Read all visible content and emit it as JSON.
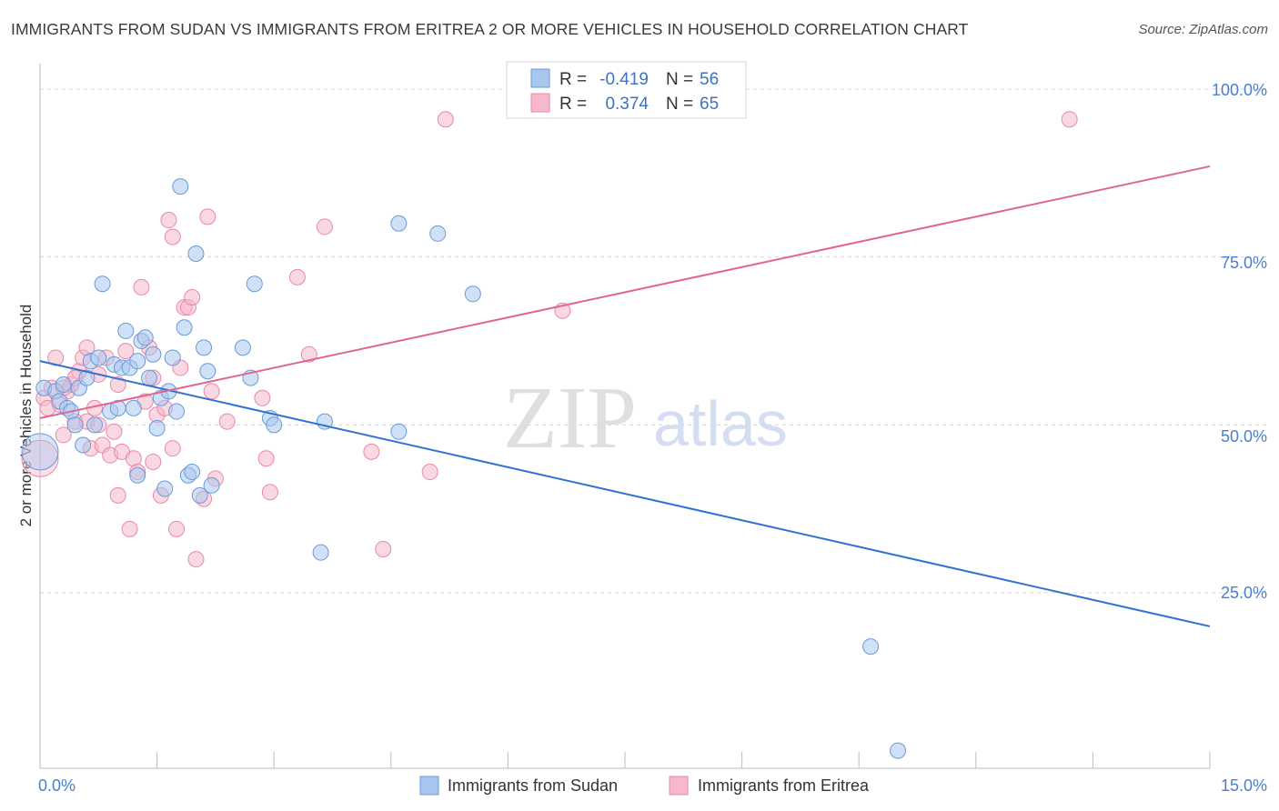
{
  "title": "IMMIGRANTS FROM SUDAN VS IMMIGRANTS FROM ERITREA 2 OR MORE VEHICLES IN HOUSEHOLD CORRELATION CHART",
  "source": "Source: ZipAtlas.com",
  "watermark": {
    "zip": "ZIP",
    "atlas": "atlas"
  },
  "colors": {
    "sudan_fill": "#a9c6ee",
    "sudan_stroke": "#6a9ad8",
    "sudan_line": "#2f72d0",
    "eritrea_fill": "#f6b8cb",
    "eritrea_stroke": "#e889a8",
    "eritrea_line": "#e06690",
    "grid": "#d8d8d8",
    "axis_label": "#4a7fd0"
  },
  "legend": {
    "r_label": "R =",
    "n_label": "N =",
    "sudan": {
      "r": "-0.419",
      "n": "56"
    },
    "eritrea": {
      "r": "0.374",
      "n": "65"
    }
  },
  "chart_data": {
    "type": "scatter",
    "title": "IMMIGRANTS FROM SUDAN VS IMMIGRANTS FROM ERITREA 2 OR MORE VEHICLES IN HOUSEHOLD CORRELATION CHART",
    "xlabel": "",
    "ylabel": "2 or more Vehicles in Household",
    "xlim": [
      0,
      15
    ],
    "ylim": [
      0,
      105
    ],
    "x_tick_labels": [
      "0.0%",
      "15.0%"
    ],
    "y_ticks": [
      25,
      50,
      75,
      100
    ],
    "y_tick_labels": [
      "25.0%",
      "50.0%",
      "75.0%",
      "100.0%"
    ],
    "grid": true,
    "series": [
      {
        "name": "Immigrants from Sudan",
        "r": -0.419,
        "n": 56,
        "trend": {
          "x": [
            0,
            15
          ],
          "y": [
            59.5,
            20
          ]
        },
        "points": [
          {
            "x": 0.0,
            "y": 46,
            "big": true
          },
          {
            "x": 0.05,
            "y": 55.5
          },
          {
            "x": 0.2,
            "y": 55
          },
          {
            "x": 0.25,
            "y": 53.5
          },
          {
            "x": 0.3,
            "y": 56
          },
          {
            "x": 0.35,
            "y": 52.5
          },
          {
            "x": 0.4,
            "y": 52
          },
          {
            "x": 0.45,
            "y": 50
          },
          {
            "x": 0.5,
            "y": 55.5
          },
          {
            "x": 0.55,
            "y": 47
          },
          {
            "x": 0.6,
            "y": 57
          },
          {
            "x": 0.65,
            "y": 59.5
          },
          {
            "x": 0.7,
            "y": 50
          },
          {
            "x": 0.75,
            "y": 60
          },
          {
            "x": 0.8,
            "y": 71
          },
          {
            "x": 0.9,
            "y": 52
          },
          {
            "x": 0.95,
            "y": 59
          },
          {
            "x": 1.0,
            "y": 52.5
          },
          {
            "x": 1.05,
            "y": 58.5
          },
          {
            "x": 1.1,
            "y": 64
          },
          {
            "x": 1.15,
            "y": 58.5
          },
          {
            "x": 1.2,
            "y": 52.5
          },
          {
            "x": 1.25,
            "y": 42.5
          },
          {
            "x": 1.3,
            "y": 62.5
          },
          {
            "x": 1.35,
            "y": 63
          },
          {
            "x": 1.4,
            "y": 57
          },
          {
            "x": 1.45,
            "y": 60.5
          },
          {
            "x": 1.5,
            "y": 49.5
          },
          {
            "x": 1.55,
            "y": 54
          },
          {
            "x": 1.6,
            "y": 40.5
          },
          {
            "x": 1.65,
            "y": 55
          },
          {
            "x": 1.7,
            "y": 60
          },
          {
            "x": 1.75,
            "y": 52
          },
          {
            "x": 1.8,
            "y": 85.5
          },
          {
            "x": 1.85,
            "y": 64.5
          },
          {
            "x": 1.9,
            "y": 42.5
          },
          {
            "x": 1.95,
            "y": 43
          },
          {
            "x": 2.0,
            "y": 75.5
          },
          {
            "x": 2.05,
            "y": 39.5
          },
          {
            "x": 2.1,
            "y": 61.5
          },
          {
            "x": 2.15,
            "y": 58
          },
          {
            "x": 2.2,
            "y": 41
          },
          {
            "x": 2.6,
            "y": 61.5
          },
          {
            "x": 2.7,
            "y": 57
          },
          {
            "x": 2.75,
            "y": 71
          },
          {
            "x": 2.95,
            "y": 51
          },
          {
            "x": 3.0,
            "y": 50
          },
          {
            "x": 3.6,
            "y": 31
          },
          {
            "x": 3.65,
            "y": 50.5
          },
          {
            "x": 4.6,
            "y": 80
          },
          {
            "x": 4.6,
            "y": 49
          },
          {
            "x": 5.1,
            "y": 78.5
          },
          {
            "x": 5.55,
            "y": 69.5
          },
          {
            "x": 10.65,
            "y": 17
          },
          {
            "x": 11.0,
            "y": 1.5
          },
          {
            "x": 1.25,
            "y": 59.5
          }
        ]
      },
      {
        "name": "Immigrants from Eritrea",
        "r": 0.374,
        "n": 65,
        "trend": {
          "x": [
            0,
            15
          ],
          "y": [
            51,
            88.5
          ]
        },
        "points": [
          {
            "x": 0.0,
            "y": 45,
            "big": true
          },
          {
            "x": 0.05,
            "y": 54
          },
          {
            "x": 0.15,
            "y": 55.5
          },
          {
            "x": 0.2,
            "y": 60
          },
          {
            "x": 0.25,
            "y": 53
          },
          {
            "x": 0.3,
            "y": 48.5
          },
          {
            "x": 0.35,
            "y": 55
          },
          {
            "x": 0.4,
            "y": 56
          },
          {
            "x": 0.45,
            "y": 50.5
          },
          {
            "x": 0.5,
            "y": 58
          },
          {
            "x": 0.55,
            "y": 60
          },
          {
            "x": 0.6,
            "y": 61.5
          },
          {
            "x": 0.65,
            "y": 46.5
          },
          {
            "x": 0.7,
            "y": 52.5
          },
          {
            "x": 0.75,
            "y": 57.5
          },
          {
            "x": 0.8,
            "y": 47
          },
          {
            "x": 0.85,
            "y": 60
          },
          {
            "x": 0.9,
            "y": 45.5
          },
          {
            "x": 0.95,
            "y": 49
          },
          {
            "x": 1.0,
            "y": 39.5
          },
          {
            "x": 1.05,
            "y": 46
          },
          {
            "x": 1.1,
            "y": 61
          },
          {
            "x": 1.15,
            "y": 34.5
          },
          {
            "x": 1.2,
            "y": 45
          },
          {
            "x": 1.25,
            "y": 43
          },
          {
            "x": 1.3,
            "y": 70.5
          },
          {
            "x": 1.35,
            "y": 53.5
          },
          {
            "x": 1.4,
            "y": 61.5
          },
          {
            "x": 1.45,
            "y": 44.5
          },
          {
            "x": 1.5,
            "y": 51.5
          },
          {
            "x": 1.55,
            "y": 39.5
          },
          {
            "x": 1.6,
            "y": 52.5
          },
          {
            "x": 1.65,
            "y": 80.5
          },
          {
            "x": 1.7,
            "y": 78
          },
          {
            "x": 1.75,
            "y": 34.5
          },
          {
            "x": 1.8,
            "y": 58.5
          },
          {
            "x": 1.85,
            "y": 67.5
          },
          {
            "x": 1.9,
            "y": 67.5
          },
          {
            "x": 1.95,
            "y": 69
          },
          {
            "x": 2.0,
            "y": 30
          },
          {
            "x": 2.1,
            "y": 39
          },
          {
            "x": 2.15,
            "y": 81
          },
          {
            "x": 2.2,
            "y": 55
          },
          {
            "x": 2.25,
            "y": 42
          },
          {
            "x": 2.4,
            "y": 50.5
          },
          {
            "x": 2.85,
            "y": 54
          },
          {
            "x": 2.9,
            "y": 45
          },
          {
            "x": 2.95,
            "y": 40
          },
          {
            "x": 3.3,
            "y": 72
          },
          {
            "x": 3.45,
            "y": 60.5
          },
          {
            "x": 3.65,
            "y": 79.5
          },
          {
            "x": 4.25,
            "y": 46
          },
          {
            "x": 4.4,
            "y": 31.5
          },
          {
            "x": 5.0,
            "y": 43
          },
          {
            "x": 5.2,
            "y": 95.5
          },
          {
            "x": 6.7,
            "y": 67
          },
          {
            "x": 13.2,
            "y": 95.5
          },
          {
            "x": 0.1,
            "y": 52.5
          },
          {
            "x": 0.3,
            "y": 55.5
          },
          {
            "x": 0.6,
            "y": 50.5
          },
          {
            "x": 0.75,
            "y": 50
          },
          {
            "x": 1.0,
            "y": 56
          },
          {
            "x": 1.45,
            "y": 57
          },
          {
            "x": 1.7,
            "y": 46.5
          },
          {
            "x": 0.45,
            "y": 57
          }
        ]
      }
    ]
  },
  "bottom_legend": {
    "sudan": "Immigrants from Sudan",
    "eritrea": "Immigrants from Eritrea"
  }
}
